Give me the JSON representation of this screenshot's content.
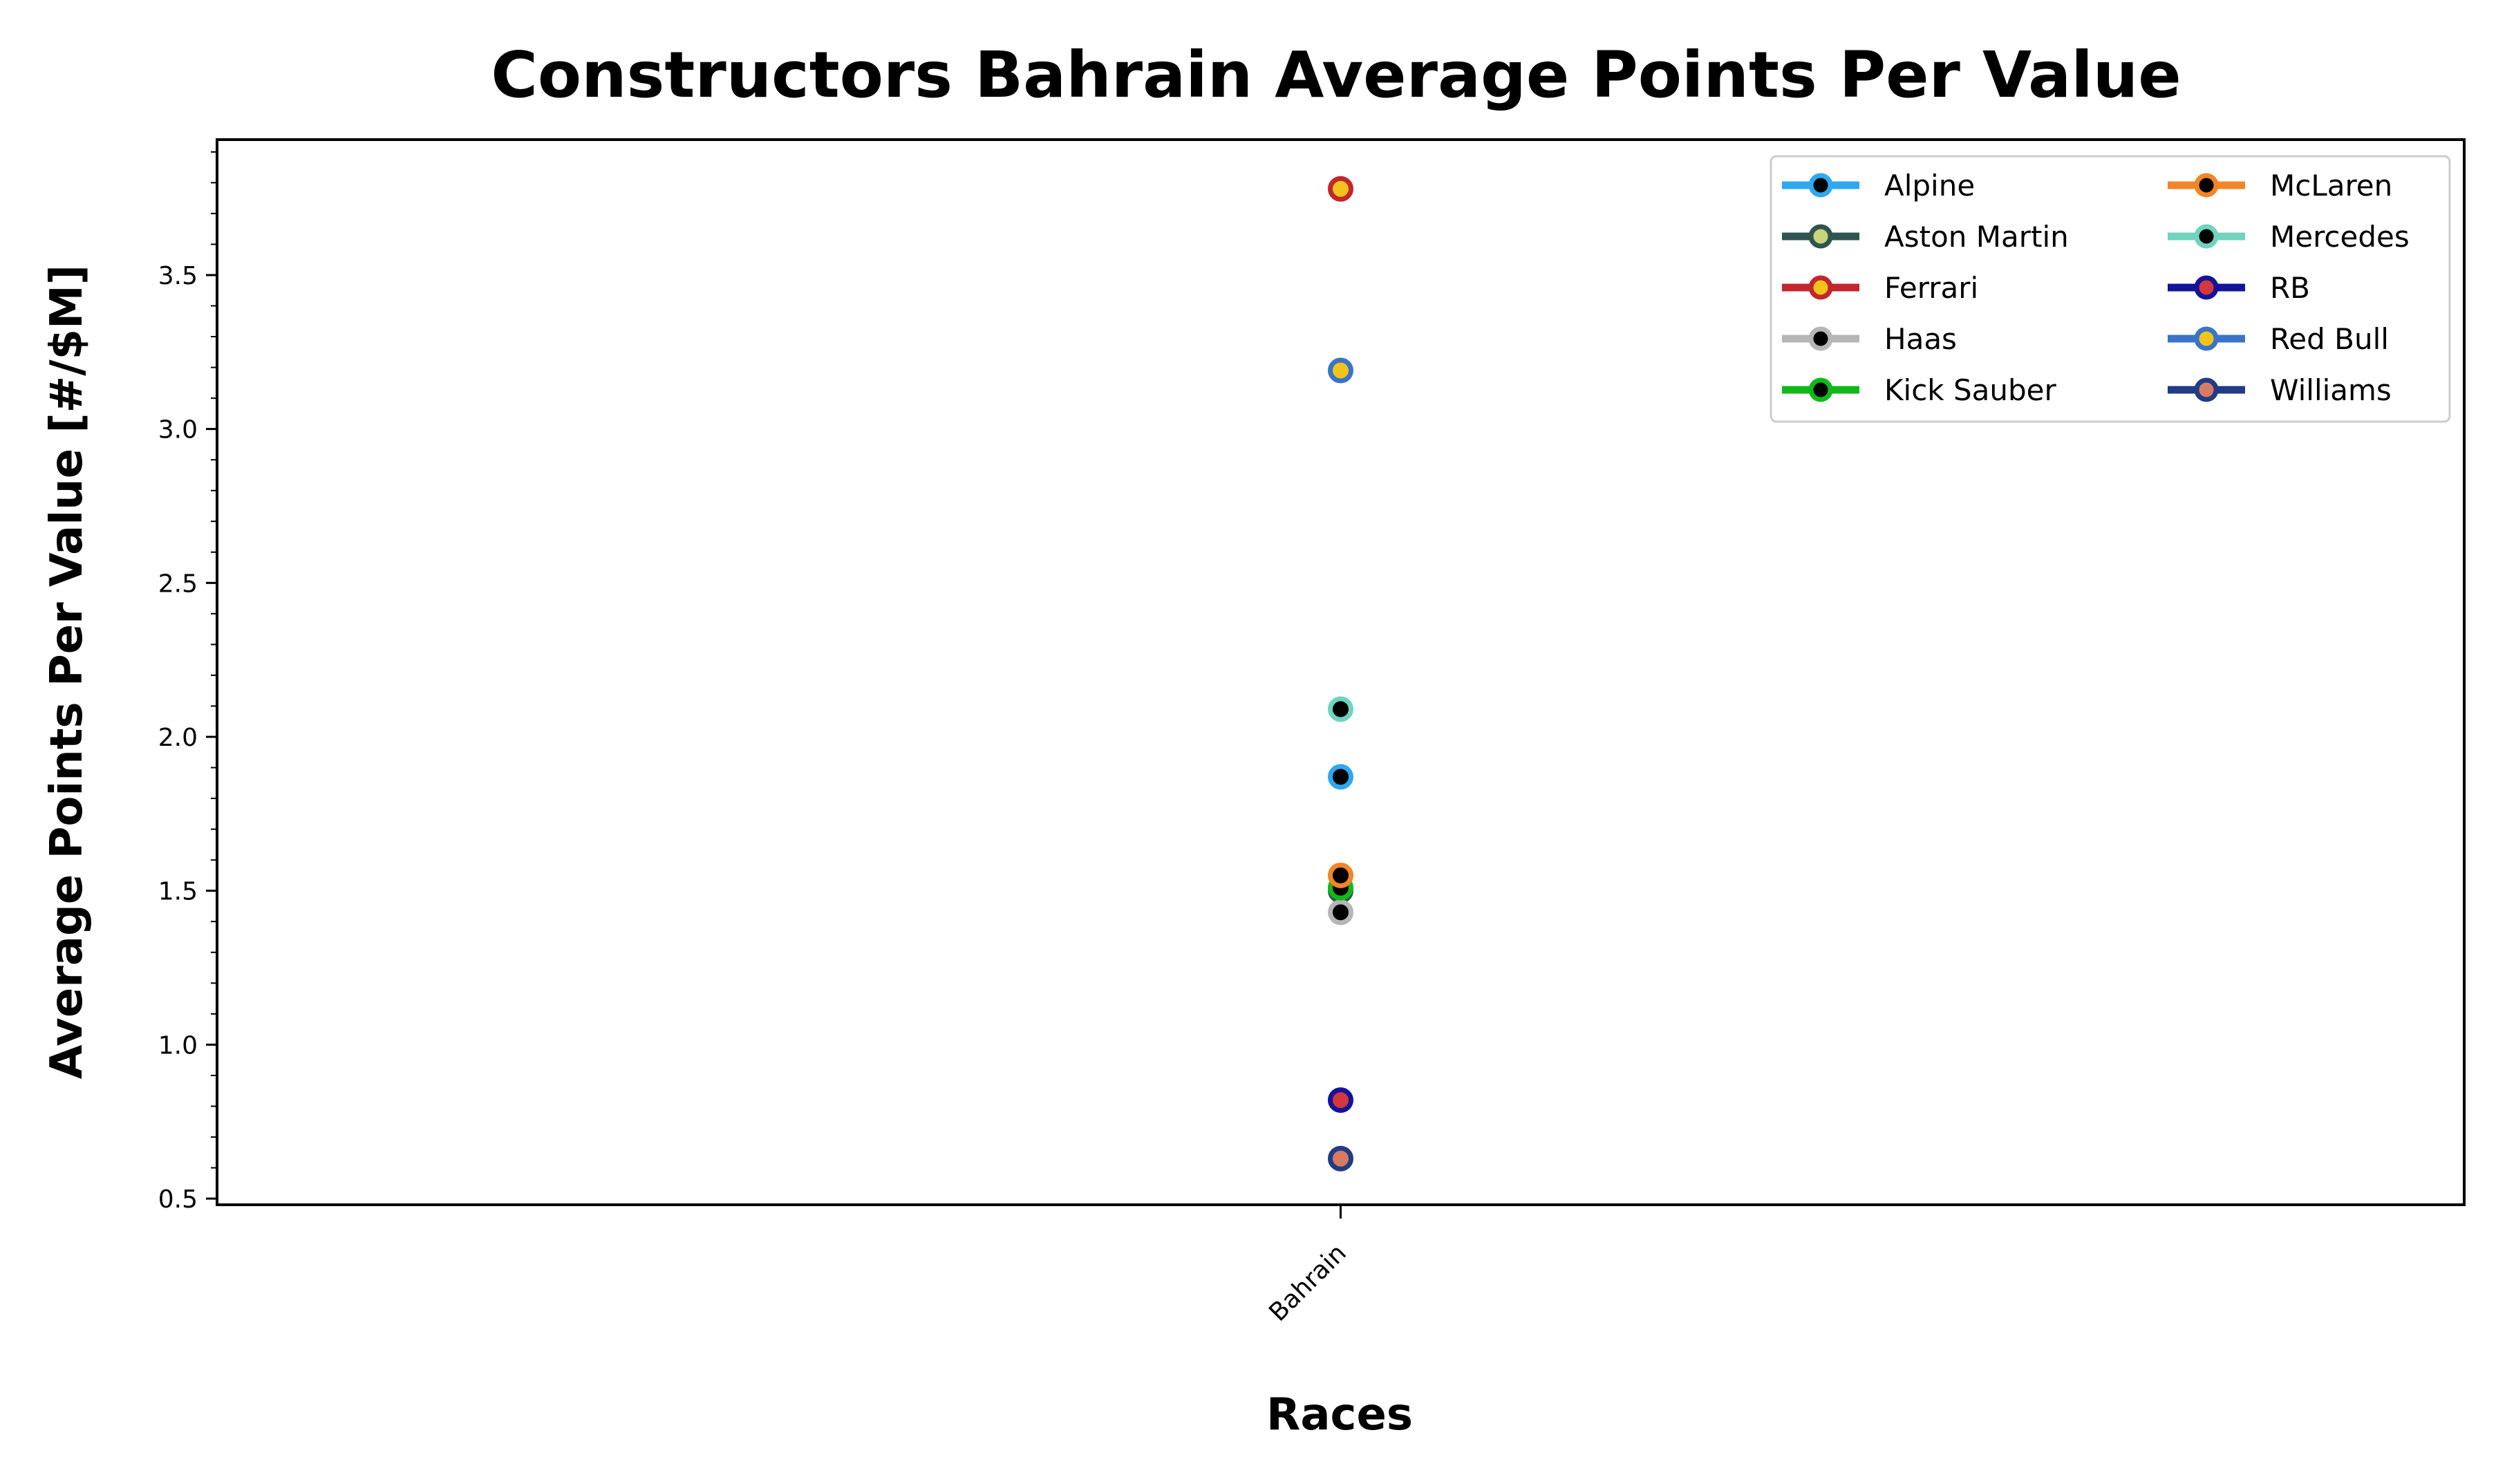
{
  "chart_data": {
    "type": "scatter",
    "title": "Constructors Bahrain Average Points Per Value",
    "xlabel": "Races",
    "ylabel": "Average Points Per Value [#/$M]",
    "categories": [
      "Bahrain"
    ],
    "ylim": [
      0.48,
      3.94
    ],
    "yticks": [
      "0.5",
      "1.0",
      "1.5",
      "2.0",
      "2.5",
      "3.0",
      "3.5"
    ],
    "legend_position": "top-right",
    "legend_columns": 2,
    "grid": false,
    "series": [
      {
        "name": "Alpine",
        "values": [
          1.87
        ],
        "line_color": "#2fa8ef",
        "marker_face": "#000000",
        "marker_edge": "#2fa8ef"
      },
      {
        "name": "Aston Martin",
        "values": [
          1.5
        ],
        "line_color": "#2f5450",
        "marker_face": "#c9d57a",
        "marker_edge": "#2f5450"
      },
      {
        "name": "Ferrari",
        "values": [
          3.78
        ],
        "line_color": "#c1272d",
        "marker_face": "#f2c31b",
        "marker_edge": "#c1272d"
      },
      {
        "name": "Haas",
        "values": [
          1.43
        ],
        "line_color": "#b6b6b6",
        "marker_face": "#000000",
        "marker_edge": "#b6b6b6"
      },
      {
        "name": "Kick Sauber",
        "values": [
          1.51
        ],
        "line_color": "#11b81a",
        "marker_face": "#000000",
        "marker_edge": "#11b81a"
      },
      {
        "name": "McLaren",
        "values": [
          1.55
        ],
        "line_color": "#f28527",
        "marker_face": "#000000",
        "marker_edge": "#f28527"
      },
      {
        "name": "Mercedes",
        "values": [
          2.09
        ],
        "line_color": "#6fd3bf",
        "marker_face": "#000000",
        "marker_edge": "#6fd3bf"
      },
      {
        "name": "RB",
        "values": [
          0.82
        ],
        "line_color": "#14139a",
        "marker_face": "#d6373d",
        "marker_edge": "#14139a"
      },
      {
        "name": "Red Bull",
        "values": [
          3.19
        ],
        "line_color": "#3a74c6",
        "marker_face": "#f2c31b",
        "marker_edge": "#3a74c6"
      },
      {
        "name": "Williams",
        "values": [
          0.63
        ],
        "line_color": "#213c85",
        "marker_face": "#d97b63",
        "marker_edge": "#213c85"
      }
    ]
  }
}
